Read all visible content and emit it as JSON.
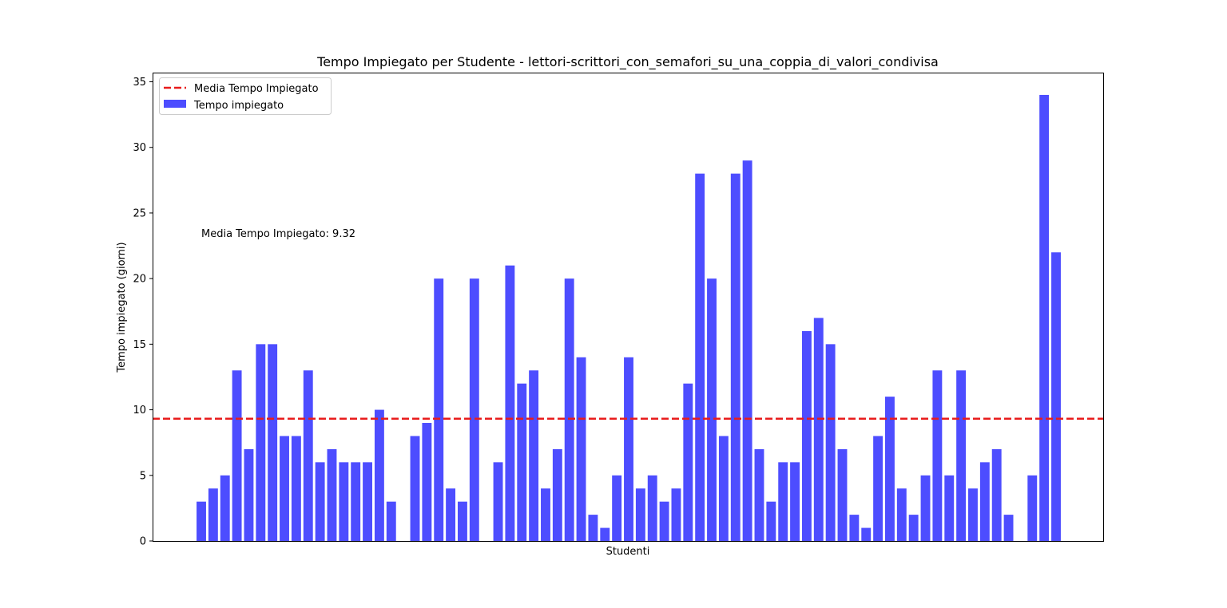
{
  "chart_data": {
    "type": "bar",
    "title": "Tempo Impiegato per Studente - lettori-scrittori_con_semafori_su_una_coppia_di_valori_condivisa",
    "xlabel": "Studenti",
    "ylabel": "Tempo impiegato (giorni)",
    "ylim": [
      0,
      35.7
    ],
    "yticks": [
      "0",
      "5",
      "10",
      "15",
      "20",
      "25",
      "30",
      "35"
    ],
    "grid": false,
    "legend_position": "top-left",
    "series": [
      {
        "name": "Tempo impiegato",
        "color": "#4d4dff",
        "values": [
          3,
          4,
          5,
          13,
          7,
          15,
          15,
          8,
          8,
          13,
          6,
          7,
          6,
          6,
          6,
          10,
          3,
          0,
          8,
          9,
          20,
          4,
          3,
          20,
          0,
          6,
          21,
          12,
          13,
          4,
          7,
          20,
          14,
          2,
          1,
          5,
          14,
          4,
          5,
          3,
          4,
          12,
          28,
          20,
          8,
          28,
          29,
          7,
          3,
          6,
          6,
          16,
          17,
          15,
          7,
          2,
          1,
          8,
          11,
          4,
          2,
          5,
          13,
          5,
          13,
          4,
          6,
          7,
          2,
          0,
          5,
          34,
          22
        ]
      }
    ],
    "mean_line": {
      "name": "Media Tempo Impiegato",
      "value": 9.32,
      "color": "#e81c1c",
      "annotation": "Media Tempo Impiegato: 9.32"
    }
  }
}
